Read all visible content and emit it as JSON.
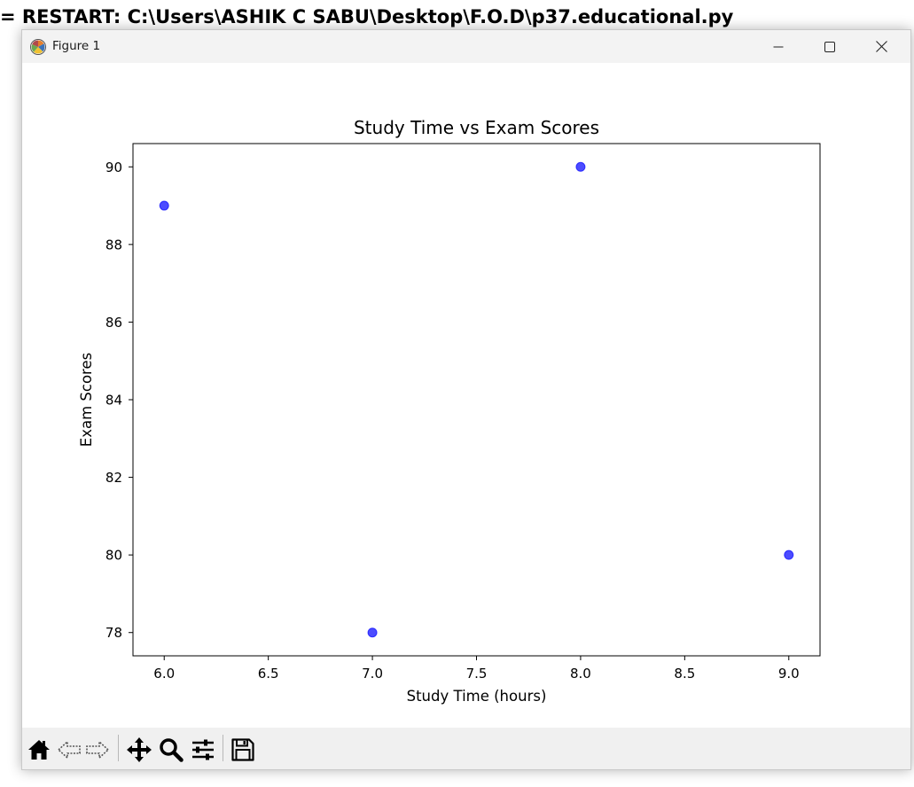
{
  "background": {
    "shell_text": "= RESTART: C:\\Users\\ASHIK C SABU\\Desktop\\F.O.D\\p37.educational.py"
  },
  "window": {
    "title": "Figure 1",
    "icons": {
      "app": "matplotlib-icon",
      "minimize": "minimize-icon",
      "maximize": "maximize-icon",
      "close": "close-icon"
    }
  },
  "toolbar": {
    "buttons": [
      {
        "icon": "home-icon"
      },
      {
        "icon": "back-arrow-icon"
      },
      {
        "icon": "forward-arrow-icon"
      },
      {
        "icon": "pan-icon"
      },
      {
        "icon": "zoom-icon"
      },
      {
        "icon": "configure-subplots-icon"
      },
      {
        "icon": "save-icon"
      }
    ]
  },
  "colors": {
    "marker": "#0000ff",
    "marker_alpha": 0.7
  },
  "chart_data": {
    "type": "scatter",
    "title": "Study Time vs Exam Scores",
    "xlabel": "Study Time (hours)",
    "ylabel": "Exam Scores",
    "x": [
      6,
      7,
      8,
      9
    ],
    "y": [
      89,
      78,
      90,
      80
    ],
    "xlim": [
      5.85,
      9.15
    ],
    "ylim": [
      77.4,
      90.6
    ],
    "xticks": [
      6.0,
      6.5,
      7.0,
      7.5,
      8.0,
      8.5,
      9.0
    ],
    "xtick_labels": [
      "6.0",
      "6.5",
      "7.0",
      "7.5",
      "8.0",
      "8.5",
      "9.0"
    ],
    "yticks": [
      78,
      80,
      82,
      84,
      86,
      88,
      90
    ],
    "ytick_labels": [
      "78",
      "80",
      "82",
      "84",
      "86",
      "88",
      "90"
    ],
    "grid": false,
    "legend": "none"
  }
}
